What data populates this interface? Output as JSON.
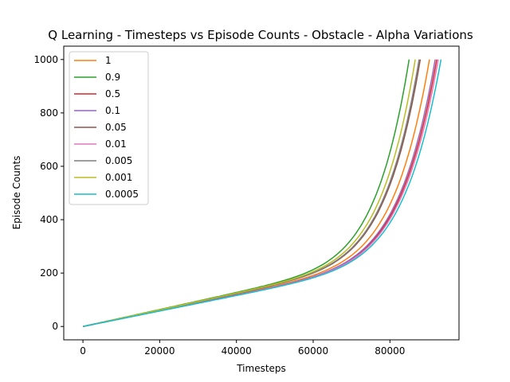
{
  "chart_data": {
    "type": "line",
    "title": "Q Learning - Timesteps vs Episode Counts - Obstacle - Alpha Variations",
    "xlabel": "Timesteps",
    "ylabel": "Episode Counts",
    "xlim": [
      -5000,
      98000
    ],
    "ylim": [
      -50,
      1050
    ],
    "xticks": [
      0,
      20000,
      40000,
      60000,
      80000
    ],
    "yticks": [
      0,
      200,
      400,
      600,
      800,
      1000
    ],
    "grid": false,
    "legend_position": "top-left",
    "series": [
      {
        "name": "1",
        "color": "#ff7f0e",
        "x_end": 90300
      },
      {
        "name": "0.9",
        "color": "#2ca02c",
        "x_end": 85000
      },
      {
        "name": "0.5",
        "color": "#d62728",
        "x_end": 92200
      },
      {
        "name": "0.1",
        "color": "#9467bd",
        "x_end": 91800
      },
      {
        "name": "0.05",
        "color": "#8c564b",
        "x_end": 87900
      },
      {
        "name": "0.01",
        "color": "#e377c2",
        "x_end": 92600
      },
      {
        "name": "0.005",
        "color": "#7f7f7f",
        "x_end": 87600
      },
      {
        "name": "0.001",
        "color": "#bcbd22",
        "x_end": 86600
      },
      {
        "name": "0.0005",
        "color": "#17becf",
        "x_end": 93300
      }
    ]
  }
}
